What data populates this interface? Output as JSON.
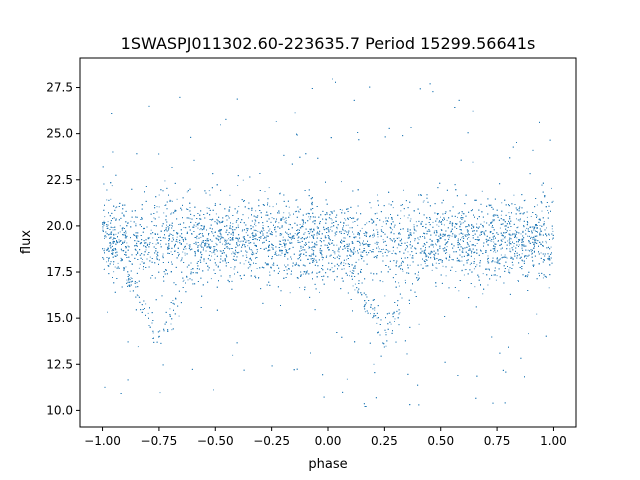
{
  "chart_data": {
    "type": "scatter",
    "title": "1SWASPJ011302.60-223635.7 Period 15299.56641s",
    "xlabel": "phase",
    "ylabel": "flux",
    "xlim": [
      -1.1,
      1.1
    ],
    "ylim": [
      9.1,
      29.1
    ],
    "x_ticks": [
      -1.0,
      -0.75,
      -0.5,
      -0.25,
      0.0,
      0.25,
      0.5,
      0.75,
      1.0
    ],
    "x_tick_labels": [
      "−1.00",
      "−0.75",
      "−0.50",
      "−0.25",
      "0.00",
      "0.25",
      "0.50",
      "0.75",
      "1.00"
    ],
    "y_ticks": [
      10.0,
      12.5,
      15.0,
      17.5,
      20.0,
      22.5,
      25.0,
      27.5
    ],
    "y_tick_labels": [
      "10.0",
      "12.5",
      "15.0",
      "17.5",
      "20.0",
      "22.5",
      "25.0",
      "27.5"
    ],
    "grid": false,
    "legend": "none",
    "marker_color": "#1f77b4",
    "series": [
      {
        "x_range": [
          -1.0,
          1.0
        ],
        "baseline_flux": 19.2,
        "baseline_spread": 1.1,
        "eclipse_phases": [
          -0.75,
          0.25
        ],
        "eclipse_min_flux": 14.0,
        "eclipse_half_width_phase": 0.22,
        "outlier_flux_range": [
          10.0,
          28.0
        ]
      }
    ]
  }
}
